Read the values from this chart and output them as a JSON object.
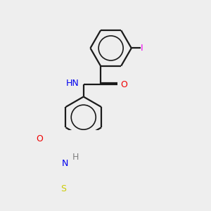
{
  "background_color": "#eeeeee",
  "bond_color": "#1a1a1a",
  "atom_colors": {
    "N": "#0000ee",
    "O": "#ee0000",
    "S": "#cccc00",
    "I": "#ee00ee",
    "C": "#1a1a1a",
    "H": "#808080"
  },
  "figsize": [
    3.0,
    3.0
  ],
  "dpi": 100,
  "lw": 1.6
}
